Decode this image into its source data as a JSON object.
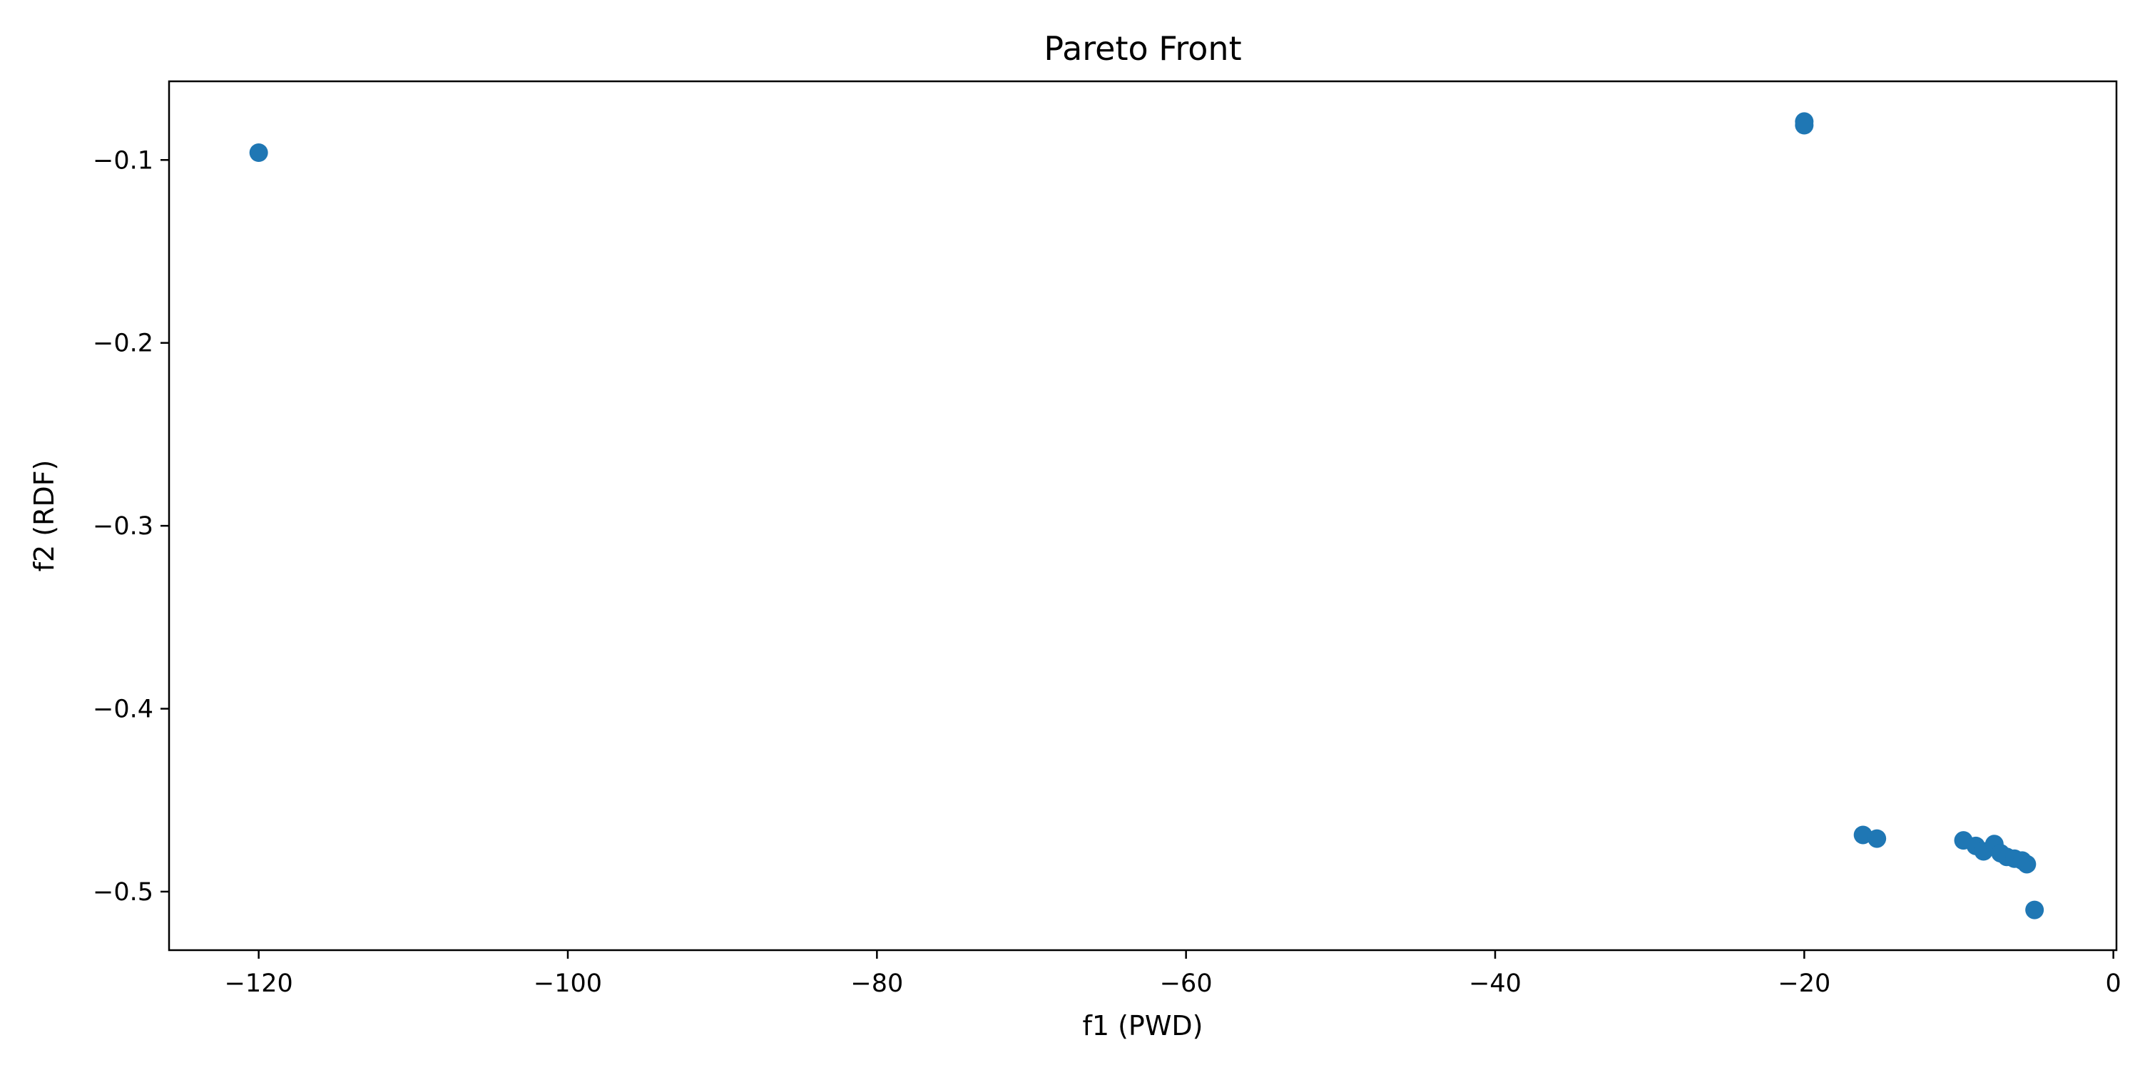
{
  "chart_data": {
    "type": "scatter",
    "title": "Pareto Front",
    "xlabel": "f1 (PWD)",
    "ylabel": "f2 (RDF)",
    "xlim": [
      -125.8,
      0.2
    ],
    "ylim": [
      -0.532,
      -0.057
    ],
    "xticks": [
      -120,
      -100,
      -80,
      -60,
      -40,
      -20,
      0
    ],
    "xtick_labels": [
      "−120",
      "−100",
      "−80",
      "−60",
      "−40",
      "−20",
      "0"
    ],
    "yticks": [
      -0.1,
      -0.2,
      -0.3,
      -0.4,
      -0.5
    ],
    "ytick_labels": [
      "−0.1",
      "−0.2",
      "−0.3",
      "−0.4",
      "−0.5"
    ],
    "grid": false,
    "marker_color": "#1f77b4",
    "series": [
      {
        "points": [
          {
            "x": -120.0,
            "y": -0.096
          },
          {
            "x": -20.0,
            "y": -0.079
          },
          {
            "x": -20.0,
            "y": -0.081
          },
          {
            "x": -16.2,
            "y": -0.469
          },
          {
            "x": -15.3,
            "y": -0.471
          },
          {
            "x": -9.7,
            "y": -0.472
          },
          {
            "x": -8.9,
            "y": -0.475
          },
          {
            "x": -8.4,
            "y": -0.478
          },
          {
            "x": -7.7,
            "y": -0.474
          },
          {
            "x": -7.3,
            "y": -0.479
          },
          {
            "x": -6.9,
            "y": -0.481
          },
          {
            "x": -6.4,
            "y": -0.482
          },
          {
            "x": -5.9,
            "y": -0.483
          },
          {
            "x": -5.6,
            "y": -0.485
          },
          {
            "x": -5.1,
            "y": -0.51
          }
        ]
      }
    ]
  }
}
